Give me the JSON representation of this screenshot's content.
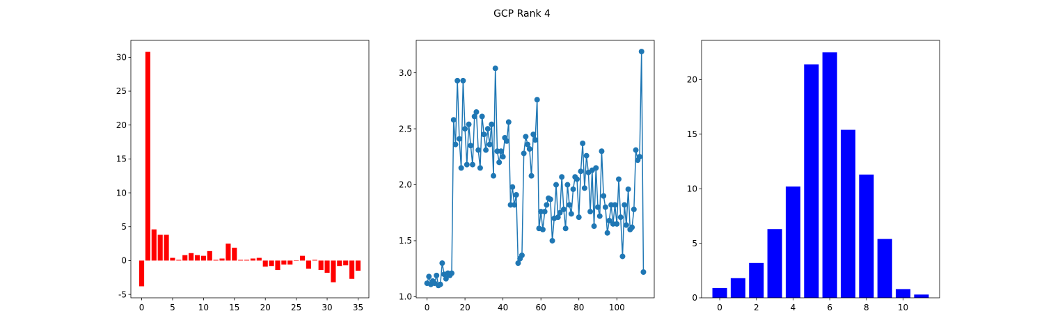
{
  "figure": {
    "title": "GCP Rank 4"
  },
  "chart_data": [
    {
      "type": "bar",
      "color": "#ff0000",
      "x": [
        0,
        1,
        2,
        3,
        4,
        5,
        6,
        7,
        8,
        9,
        10,
        11,
        12,
        13,
        14,
        15,
        16,
        17,
        18,
        19,
        20,
        21,
        22,
        23,
        24,
        25,
        26,
        27,
        28,
        29,
        30,
        31,
        32,
        33,
        34,
        35
      ],
      "values": [
        -3.8,
        30.8,
        4.6,
        3.8,
        3.8,
        0.4,
        0.1,
        0.8,
        1.1,
        0.8,
        0.7,
        1.4,
        0.1,
        0.3,
        2.5,
        1.9,
        0.1,
        0.1,
        0.3,
        0.4,
        -0.9,
        -0.8,
        -1.4,
        -0.6,
        -0.6,
        0.0,
        0.7,
        -1.2,
        0.1,
        -1.4,
        -1.8,
        -3.2,
        -0.8,
        -0.7,
        -2.7,
        -1.5
      ],
      "xlim": [
        -1.75,
        36.75
      ],
      "ylim": [
        -5.5,
        32.5
      ],
      "xticks": [
        0,
        5,
        10,
        15,
        20,
        25,
        30,
        35
      ],
      "yticks": [
        -5,
        0,
        5,
        10,
        15,
        20,
        25,
        30
      ],
      "xlabel": "",
      "ylabel": ""
    },
    {
      "type": "line",
      "color": "#1f77b4",
      "markers": true,
      "y": [
        1.12,
        1.18,
        1.11,
        1.14,
        1.12,
        1.19,
        1.1,
        1.11,
        1.3,
        1.2,
        1.16,
        1.21,
        1.19,
        1.21,
        2.58,
        2.36,
        2.93,
        2.41,
        2.15,
        2.93,
        2.5,
        2.18,
        2.54,
        2.35,
        2.18,
        2.61,
        2.65,
        2.31,
        2.15,
        2.61,
        2.45,
        2.31,
        2.5,
        2.36,
        2.54,
        2.08,
        3.04,
        2.3,
        2.2,
        2.3,
        2.25,
        2.42,
        2.39,
        2.56,
        1.82,
        1.98,
        1.82,
        1.91,
        1.3,
        1.34,
        1.37,
        2.28,
        2.43,
        2.36,
        2.32,
        2.08,
        2.45,
        2.4,
        2.76,
        1.61,
        1.76,
        1.6,
        1.76,
        1.82,
        1.88,
        1.87,
        1.5,
        1.7,
        2.0,
        1.71,
        1.75,
        2.07,
        1.78,
        1.61,
        2.0,
        1.82,
        1.74,
        1.96,
        2.07,
        2.05,
        1.71,
        2.12,
        2.37,
        1.97,
        2.26,
        2.11,
        1.76,
        2.13,
        1.63,
        2.15,
        1.8,
        1.72,
        2.3,
        1.9,
        1.8,
        1.57,
        1.68,
        1.82,
        1.65,
        1.82,
        1.65,
        2.05,
        1.71,
        1.36,
        1.82,
        1.64,
        1.96,
        1.6,
        1.62,
        1.78,
        2.31,
        2.22,
        2.25,
        3.19,
        1.22
      ],
      "xlim": [
        -5.7,
        119.7
      ],
      "ylim": [
        0.99,
        3.29
      ],
      "xticks": [
        0,
        20,
        40,
        60,
        80,
        100
      ],
      "yticks": [
        1.0,
        1.5,
        2.0,
        2.5,
        3.0
      ],
      "xlabel": "",
      "ylabel": ""
    },
    {
      "type": "bar",
      "color": "#0000ff",
      "x": [
        0,
        1,
        2,
        3,
        4,
        5,
        6,
        7,
        8,
        9,
        10,
        11
      ],
      "values": [
        0.9,
        1.8,
        3.2,
        6.3,
        10.2,
        21.4,
        22.5,
        15.4,
        11.3,
        5.4,
        0.8,
        0.3
      ],
      "xlim": [
        -0.99,
        11.99
      ],
      "ylim": [
        0,
        23.6
      ],
      "xticks": [
        0,
        2,
        4,
        6,
        8,
        10
      ],
      "yticks": [
        0,
        5,
        10,
        15,
        20
      ],
      "xlabel": "",
      "ylabel": ""
    }
  ]
}
